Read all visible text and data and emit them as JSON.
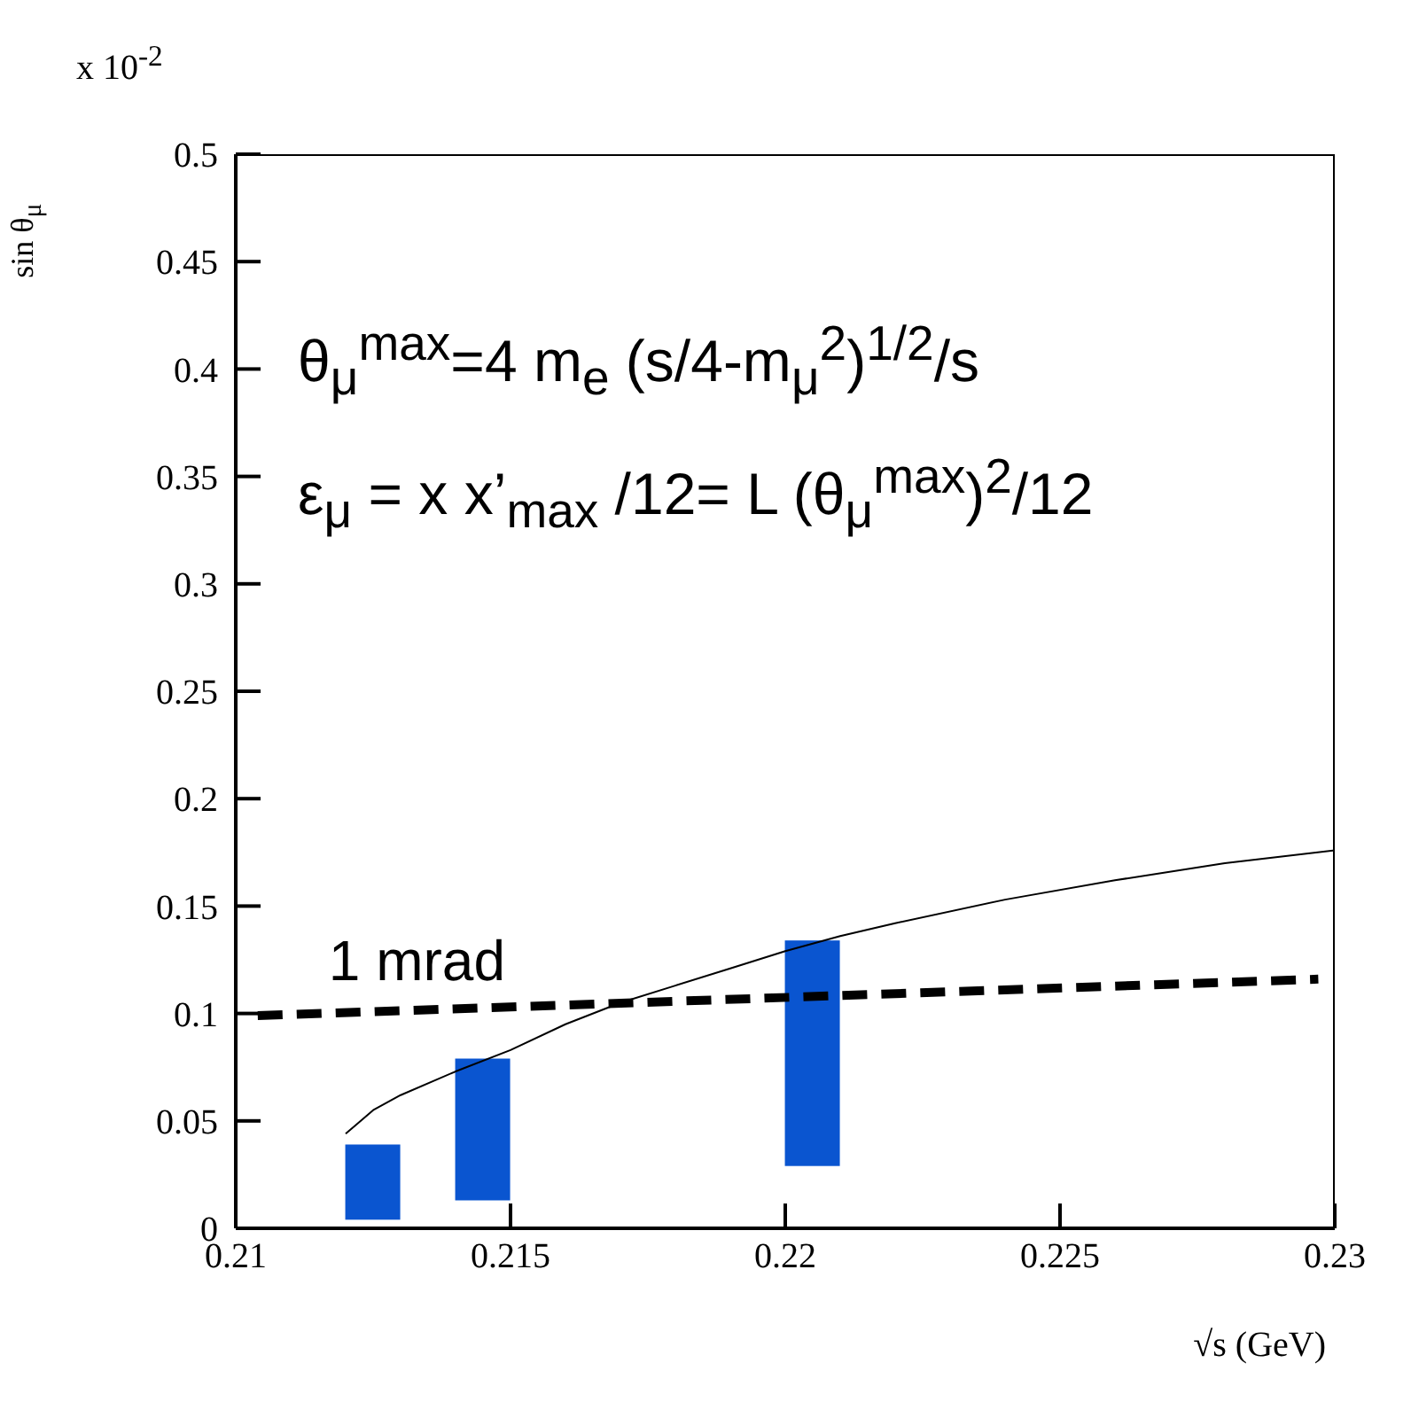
{
  "chart_data": {
    "type": "line",
    "xlabel": "√s (GeV)",
    "ylabel": "sin θ$_{μ}$",
    "xlim": [
      0.21,
      0.23
    ],
    "xticks": [
      0.21,
      0.215,
      0.22,
      0.225,
      0.23
    ],
    "ylim": [
      0,
      0.5
    ],
    "yticks": [
      0,
      0.05,
      0.1,
      0.15,
      0.2,
      0.25,
      0.3,
      0.35,
      0.4,
      0.45,
      0.5
    ],
    "series": [
      {
        "type": "bar",
        "color": "#0a55d0",
        "x": [
          0.2125,
          0.2145,
          0.2205
        ],
        "base": [
          0.004,
          0.013,
          0.029
        ],
        "values": [
          0.035,
          0.066,
          0.105
        ]
      },
      {
        "color": "#000000",
        "line_style": "solid",
        "x": [
          0.212,
          0.2125,
          0.213,
          0.214,
          0.215,
          0.216,
          0.217,
          0.218,
          0.219,
          0.22,
          0.221,
          0.222,
          0.224,
          0.226,
          0.228,
          0.23
        ],
        "values": [
          0.044,
          0.055,
          0.062,
          0.073,
          0.083,
          0.095,
          0.105,
          0.113,
          0.121,
          0.129,
          0.136,
          0.142,
          0.153,
          0.162,
          0.17,
          0.176
        ]
      },
      {
        "name": "1 mrad",
        "color": "#000000",
        "line_style": "dashed",
        "x": [
          0.2104,
          0.2297
        ],
        "values": [
          0.099,
          0.116
        ]
      }
    ],
    "annotations": [
      "x 10$^{-2}$",
      "θ$_{μ}$$^{max}$=4 m$_{e}$ (s/4-m$_{μ}$$^{2}$)$^{1/2}$/s",
      "ε$_{μ}$ = x x’$_{max}$ /12= L (θ$_{μ}$$^{max}$)$^{2}$/12"
    ]
  }
}
